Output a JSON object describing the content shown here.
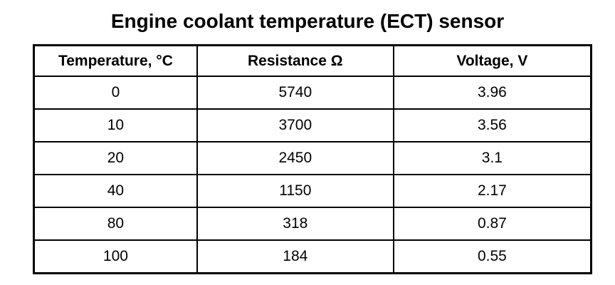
{
  "title": "Engine coolant temperature (ECT) sensor",
  "table": {
    "header": [
      "Temperature, °C",
      "Resistance Ω",
      "Voltage, V"
    ],
    "rows": [
      [
        "0",
        "5740",
        "3.96"
      ],
      [
        "10",
        "3700",
        "3.56"
      ],
      [
        "20",
        "2450",
        "3.1"
      ],
      [
        "40",
        "1150",
        "2.17"
      ],
      [
        "80",
        "318",
        "0.87"
      ],
      [
        "100",
        "184",
        "0.55"
      ]
    ]
  }
}
